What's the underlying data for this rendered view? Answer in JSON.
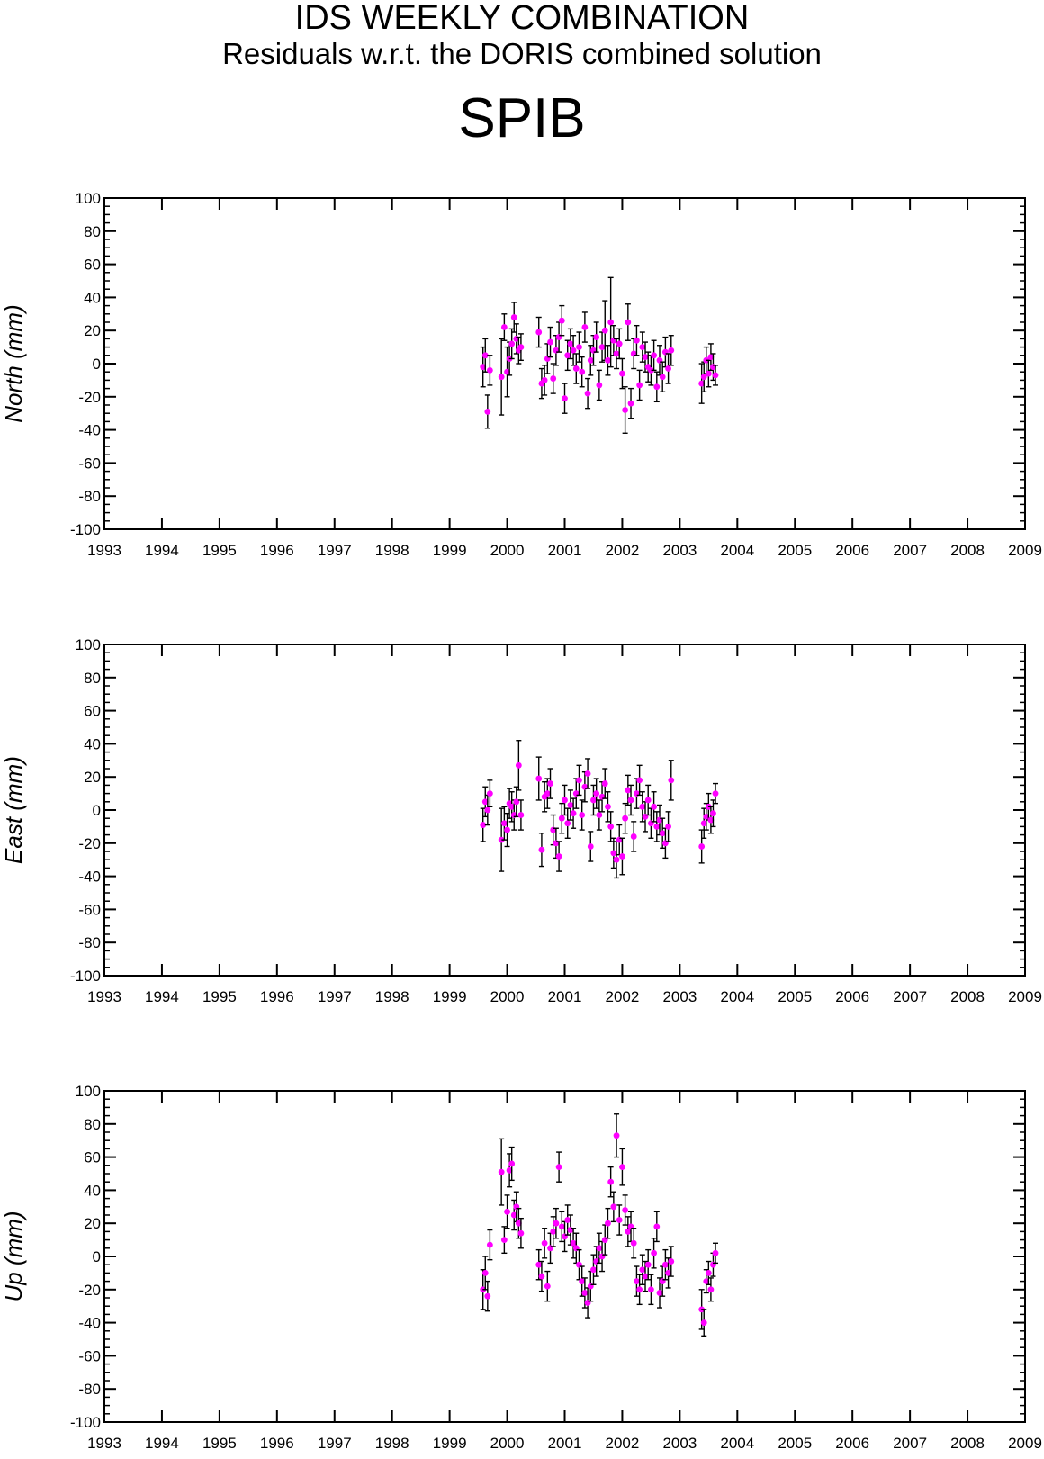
{
  "header": {
    "title": "IDS WEEKLY COMBINATION",
    "subtitle": "Residuals w.r.t. the DORIS combined solution",
    "station": "SPIB"
  },
  "colors": {
    "point": "#ff00ff",
    "errorbar": "#000000",
    "axis": "#000000"
  },
  "chart_data": [
    {
      "type": "scatter",
      "ylabel": "North (mm)",
      "xlim": [
        1993,
        2009
      ],
      "ylim": [
        -100,
        100
      ],
      "x_ticks": [
        "1993",
        "1994",
        "1995",
        "1996",
        "1997",
        "1998",
        "1999",
        "2000",
        "2001",
        "2002",
        "2003",
        "2004",
        "2005",
        "2006",
        "2007",
        "2008",
        "2009"
      ],
      "y_ticks": [
        "100",
        "80",
        "60",
        "40",
        "20",
        "0",
        "-20",
        "-40",
        "-60",
        "-80",
        "-100"
      ],
      "x": [
        1999.58,
        1999.62,
        1999.66,
        1999.7,
        1999.9,
        1999.95,
        2000.0,
        2000.04,
        2000.08,
        2000.12,
        2000.16,
        2000.2,
        2000.24,
        2000.55,
        2000.6,
        2000.65,
        2000.7,
        2000.75,
        2000.8,
        2000.85,
        2000.9,
        2000.95,
        2001.0,
        2001.05,
        2001.1,
        2001.15,
        2001.2,
        2001.25,
        2001.3,
        2001.35,
        2001.4,
        2001.45,
        2001.5,
        2001.55,
        2001.6,
        2001.65,
        2001.7,
        2001.75,
        2001.8,
        2001.85,
        2001.9,
        2001.95,
        2002.0,
        2002.05,
        2002.1,
        2002.15,
        2002.2,
        2002.25,
        2002.3,
        2002.35,
        2002.4,
        2002.45,
        2002.5,
        2002.55,
        2002.6,
        2002.65,
        2002.7,
        2002.75,
        2002.8,
        2002.85,
        2003.38,
        2003.42,
        2003.46,
        2003.5,
        2003.54,
        2003.58,
        2003.62
      ],
      "values": [
        -2,
        5,
        -29,
        -4,
        -8,
        22,
        -5,
        3,
        12,
        28,
        15,
        8,
        10,
        19,
        -12,
        -10,
        3,
        13,
        -9,
        8,
        16,
        26,
        -21,
        5,
        12,
        8,
        -3,
        10,
        -5,
        22,
        -18,
        2,
        8,
        16,
        -13,
        10,
        20,
        2,
        25,
        14,
        6,
        12,
        -6,
        -28,
        25,
        -24,
        6,
        14,
        -13,
        10,
        4,
        -2,
        -4,
        5,
        -14,
        2,
        -8,
        7,
        -3,
        8,
        -12,
        -8,
        2,
        -6,
        4,
        -2,
        -7
      ],
      "errors": [
        12,
        10,
        10,
        9,
        23,
        8,
        15,
        10,
        9,
        9,
        9,
        8,
        8,
        9,
        9,
        9,
        9,
        9,
        9,
        9,
        9,
        9,
        9,
        9,
        9,
        9,
        9,
        9,
        9,
        9,
        9,
        9,
        9,
        9,
        9,
        9,
        18,
        9,
        27,
        9,
        9,
        9,
        9,
        14,
        11,
        9,
        9,
        9,
        9,
        9,
        9,
        9,
        9,
        9,
        9,
        9,
        9,
        9,
        9,
        9,
        12,
        9,
        8,
        8,
        8,
        8,
        6
      ]
    },
    {
      "type": "scatter",
      "ylabel": "East (mm)",
      "xlim": [
        1993,
        2009
      ],
      "ylim": [
        -100,
        100
      ],
      "x_ticks": [
        "1993",
        "1994",
        "1995",
        "1996",
        "1997",
        "1998",
        "1999",
        "2000",
        "2001",
        "2002",
        "2003",
        "2004",
        "2005",
        "2006",
        "2007",
        "2008",
        "2009"
      ],
      "y_ticks": [
        "100",
        "80",
        "60",
        "40",
        "20",
        "0",
        "-20",
        "-40",
        "-60",
        "-80",
        "-100"
      ],
      "x": [
        1999.58,
        1999.62,
        1999.66,
        1999.7,
        1999.9,
        1999.95,
        2000.0,
        2000.04,
        2000.08,
        2000.12,
        2000.16,
        2000.2,
        2000.24,
        2000.55,
        2000.6,
        2000.65,
        2000.7,
        2000.75,
        2000.8,
        2000.85,
        2000.9,
        2000.95,
        2001.0,
        2001.05,
        2001.1,
        2001.15,
        2001.2,
        2001.25,
        2001.3,
        2001.35,
        2001.4,
        2001.45,
        2001.5,
        2001.55,
        2001.6,
        2001.65,
        2001.7,
        2001.75,
        2001.8,
        2001.85,
        2001.9,
        2001.95,
        2002.0,
        2002.05,
        2002.1,
        2002.15,
        2002.2,
        2002.25,
        2002.3,
        2002.35,
        2002.4,
        2002.45,
        2002.5,
        2002.55,
        2002.6,
        2002.65,
        2002.7,
        2002.75,
        2002.8,
        2002.85,
        2003.38,
        2003.42,
        2003.46,
        2003.5,
        2003.54,
        2003.58,
        2003.62
      ],
      "values": [
        -9,
        5,
        0,
        10,
        -18,
        -8,
        -12,
        4,
        2,
        -3,
        5,
        27,
        -3,
        19,
        -24,
        8,
        10,
        16,
        -12,
        -20,
        -28,
        -5,
        6,
        -8,
        3,
        -2,
        10,
        18,
        -3,
        14,
        22,
        -22,
        6,
        10,
        -3,
        8,
        16,
        2,
        -10,
        -26,
        -30,
        -18,
        -28,
        -5,
        12,
        6,
        -16,
        10,
        18,
        2,
        -4,
        6,
        -8,
        2,
        -10,
        -6,
        -14,
        -20,
        -10,
        18,
        -22,
        -8,
        -4,
        2,
        -6,
        -2,
        10
      ],
      "errors": [
        10,
        9,
        9,
        8,
        19,
        10,
        10,
        9,
        9,
        9,
        9,
        15,
        9,
        13,
        10,
        9,
        9,
        9,
        9,
        9,
        9,
        9,
        9,
        9,
        9,
        9,
        9,
        9,
        9,
        9,
        9,
        9,
        9,
        9,
        9,
        9,
        9,
        9,
        9,
        9,
        11,
        9,
        11,
        9,
        9,
        9,
        9,
        9,
        9,
        9,
        9,
        9,
        9,
        9,
        9,
        9,
        9,
        9,
        9,
        12,
        10,
        9,
        8,
        8,
        8,
        8,
        6
      ]
    },
    {
      "type": "scatter",
      "ylabel": "Up (mm)",
      "xlim": [
        1993,
        2009
      ],
      "ylim": [
        -100,
        100
      ],
      "x_ticks": [
        "1993",
        "1994",
        "1995",
        "1996",
        "1997",
        "1998",
        "1999",
        "2000",
        "2001",
        "2002",
        "2003",
        "2004",
        "2005",
        "2006",
        "2007",
        "2008",
        "2009"
      ],
      "y_ticks": [
        "100",
        "80",
        "60",
        "40",
        "20",
        "0",
        "-20",
        "-40",
        "-60",
        "-80",
        "-100"
      ],
      "x": [
        1999.58,
        1999.62,
        1999.66,
        1999.7,
        1999.9,
        1999.95,
        2000.0,
        2000.04,
        2000.08,
        2000.12,
        2000.16,
        2000.2,
        2000.24,
        2000.55,
        2000.6,
        2000.65,
        2000.7,
        2000.75,
        2000.8,
        2000.85,
        2000.9,
        2000.95,
        2001.0,
        2001.05,
        2001.1,
        2001.15,
        2001.2,
        2001.25,
        2001.3,
        2001.35,
        2001.4,
        2001.45,
        2001.5,
        2001.55,
        2001.6,
        2001.65,
        2001.7,
        2001.75,
        2001.8,
        2001.85,
        2001.9,
        2001.95,
        2002.0,
        2002.05,
        2002.1,
        2002.15,
        2002.2,
        2002.25,
        2002.3,
        2002.35,
        2002.4,
        2002.45,
        2002.5,
        2002.55,
        2002.6,
        2002.65,
        2002.7,
        2002.75,
        2002.8,
        2002.85,
        2003.38,
        2003.42,
        2003.46,
        2003.5,
        2003.54,
        2003.58,
        2003.62
      ],
      "values": [
        -20,
        -10,
        -24,
        7,
        51,
        10,
        27,
        52,
        56,
        25,
        30,
        20,
        14,
        -5,
        -12,
        8,
        -18,
        5,
        15,
        20,
        54,
        18,
        12,
        22,
        16,
        8,
        5,
        -5,
        -15,
        -22,
        -28,
        -18,
        -8,
        -3,
        5,
        0,
        10,
        20,
        45,
        30,
        73,
        22,
        54,
        28,
        15,
        18,
        8,
        -15,
        -20,
        -8,
        -12,
        -5,
        -20,
        2,
        18,
        -22,
        -15,
        -5,
        -10,
        -3,
        -32,
        -40,
        -15,
        -10,
        -20,
        -5,
        2
      ],
      "errors": [
        12,
        10,
        9,
        9,
        20,
        8,
        10,
        10,
        10,
        9,
        9,
        9,
        9,
        9,
        9,
        9,
        9,
        9,
        9,
        9,
        9,
        9,
        9,
        9,
        9,
        9,
        9,
        9,
        9,
        9,
        9,
        9,
        9,
        9,
        9,
        9,
        9,
        9,
        9,
        9,
        13,
        9,
        11,
        9,
        9,
        9,
        9,
        9,
        9,
        9,
        9,
        9,
        9,
        9,
        9,
        9,
        9,
        9,
        9,
        9,
        12,
        8,
        7,
        7,
        7,
        7,
        6
      ]
    }
  ]
}
